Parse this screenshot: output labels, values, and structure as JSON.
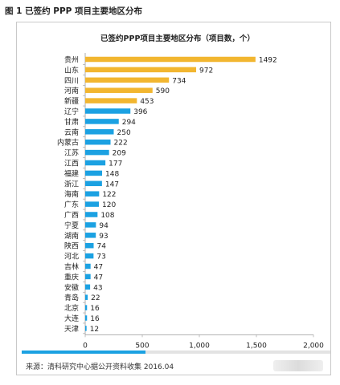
{
  "figure_title": "图 1  已签约 PPP 项目主要地区分布",
  "source_note": "来源：清科研究中心据公开资料收集 2016.04",
  "progress": 0.4,
  "colors": {
    "highlight": "#f2b630",
    "normal": "#1ba1e2",
    "progress": "#1ba1e2"
  },
  "chart_data": {
    "type": "bar",
    "orientation": "horizontal",
    "title": "已签约PPP项目主要地区分布（项目数，个）",
    "categories": [
      "贵州",
      "山东",
      "四川",
      "河南",
      "新疆",
      "辽宁",
      "甘肃",
      "云南",
      "内蒙古",
      "江苏",
      "江西",
      "福建",
      "浙江",
      "海南",
      "广东",
      "广西",
      "宁夏",
      "湖南",
      "陕西",
      "河北",
      "吉林",
      "重庆",
      "安徽",
      "青岛",
      "北京",
      "大连",
      "天津"
    ],
    "values": [
      1492,
      972,
      734,
      590,
      453,
      396,
      294,
      250,
      222,
      209,
      177,
      148,
      147,
      122,
      120,
      108,
      94,
      93,
      74,
      73,
      47,
      47,
      43,
      22,
      16,
      16,
      12
    ],
    "highlighted_count": 5,
    "xlim": [
      0,
      2000
    ],
    "xticks": [
      0,
      500,
      1000,
      1500,
      2000
    ],
    "xtick_labels": [
      "0",
      "500",
      "1,000",
      "1,500",
      "2,000"
    ],
    "data_labels": true,
    "grid": false
  }
}
